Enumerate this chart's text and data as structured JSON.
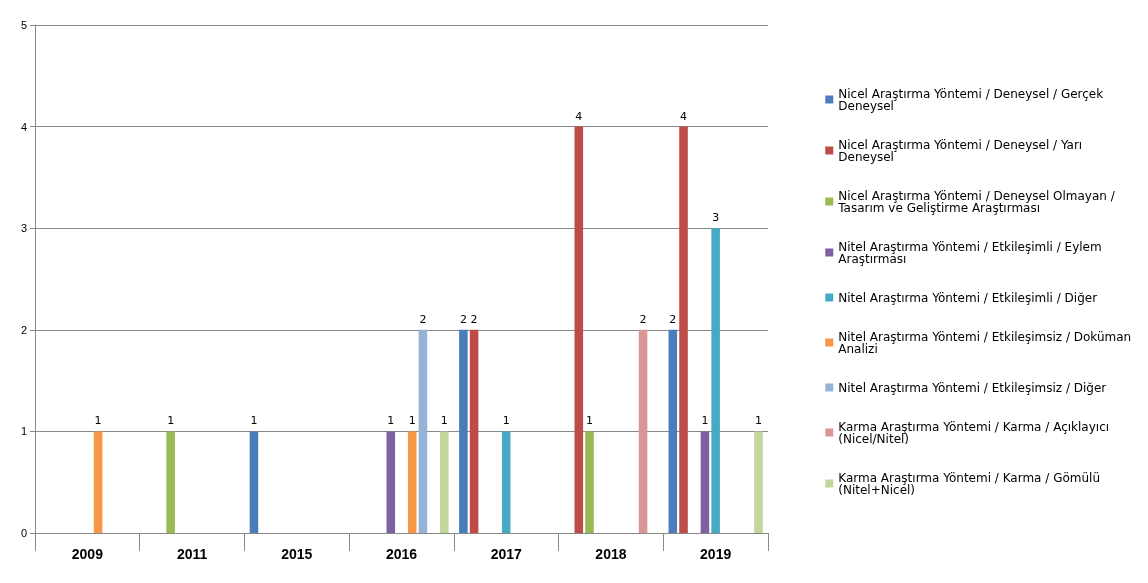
{
  "chart_data": {
    "type": "bar",
    "categories": [
      "2009",
      "2011",
      "2015",
      "2016",
      "2017",
      "2018",
      "2019"
    ],
    "series": [
      {
        "name": "Nicel Araştırma Yöntemi / Deneysel / Gerçek Deneysel",
        "color": "#4a7ebb",
        "values": [
          null,
          null,
          1,
          null,
          2,
          null,
          2
        ]
      },
      {
        "name": "Nicel Araştırma Yöntemi / Deneysel / Yarı Deneysel",
        "color": "#be4b48",
        "values": [
          null,
          null,
          null,
          null,
          2,
          4,
          4
        ]
      },
      {
        "name": "Nicel Araştırma Yöntemi / Deneysel Olmayan / Tasarım ve Geliştirme Araştırması",
        "color": "#98b954",
        "values": [
          null,
          1,
          null,
          null,
          null,
          1,
          null
        ]
      },
      {
        "name": "Nitel Araştırma Yöntemi / Etkileşimli / Eylem Araştırması",
        "color": "#7d60a0",
        "values": [
          null,
          null,
          null,
          1,
          null,
          null,
          1
        ]
      },
      {
        "name": "Nitel Araştırma Yöntemi / Etkileşimli / Diğer",
        "color": "#46aac5",
        "values": [
          null,
          null,
          null,
          null,
          1,
          null,
          3
        ]
      },
      {
        "name": "Nitel Araştırma Yöntemi / Etkileşimsiz / Doküman Analizi",
        "color": "#f79646",
        "values": [
          1,
          null,
          null,
          1,
          null,
          null,
          null
        ]
      },
      {
        "name": "Nitel Araştırma Yöntemi / Etkileşimsiz / Diğer",
        "color": "#95b3d7",
        "values": [
          null,
          null,
          null,
          2,
          null,
          null,
          null
        ]
      },
      {
        "name": "Karma Araştırma Yöntemi / Karma / Açıklayıcı (Nicel/Nitel)",
        "color": "#d99694",
        "values": [
          null,
          null,
          null,
          null,
          null,
          2,
          null
        ]
      },
      {
        "name": "Karma Araştırma Yöntemi / Karma / Gömülü (Nitel+Nicel)",
        "color": "#c3d69b",
        "values": [
          null,
          null,
          null,
          1,
          null,
          null,
          1
        ]
      }
    ],
    "ylim": [
      0,
      5
    ],
    "yticks": [
      0,
      1,
      2,
      3,
      4,
      5
    ],
    "grid": "y",
    "legend": "right",
    "data_labels": true
  }
}
